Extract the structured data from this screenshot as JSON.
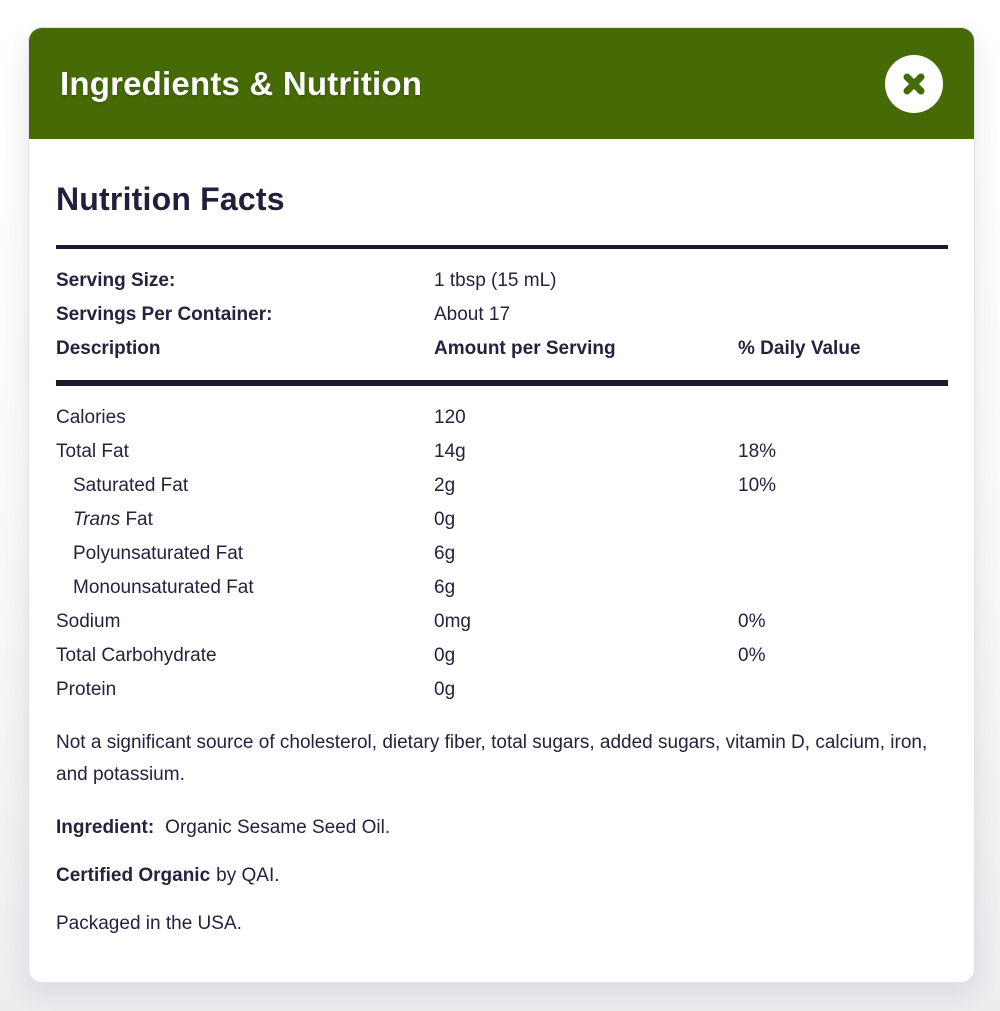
{
  "modal": {
    "title": "Ingredients & Nutrition"
  },
  "colors": {
    "header_green": "#456a06",
    "text_navy": "#232340",
    "rule": "#1a1a30"
  },
  "panel": {
    "title": "Nutrition Facts",
    "serving_rows": [
      {
        "label": "Serving Size:",
        "label_italic": "",
        "amount": "1 tbsp (15 mL)",
        "dv": "",
        "indent": false,
        "label_bold": true,
        "amount_bold": false,
        "dv_bold": false
      },
      {
        "label": "Servings Per Container:",
        "label_italic": "",
        "amount": "About 17",
        "dv": "",
        "indent": false,
        "label_bold": true,
        "amount_bold": false,
        "dv_bold": false
      },
      {
        "label": "Description",
        "label_italic": "",
        "amount": "Amount per Serving",
        "dv": "% Daily Value",
        "indent": false,
        "label_bold": true,
        "amount_bold": true,
        "dv_bold": true
      }
    ],
    "nutrient_rows": [
      {
        "label": "Calories",
        "label_italic": "",
        "amount": "120",
        "dv": "",
        "indent": false,
        "label_bold": false,
        "amount_bold": false,
        "dv_bold": false
      },
      {
        "label": "Total Fat",
        "label_italic": "",
        "amount": "14g",
        "dv": "18%",
        "indent": false,
        "label_bold": false,
        "amount_bold": false,
        "dv_bold": false
      },
      {
        "label": "Saturated Fat",
        "label_italic": "",
        "amount": "2g",
        "dv": "10%",
        "indent": true,
        "label_bold": false,
        "amount_bold": false,
        "dv_bold": false
      },
      {
        "label": " Fat",
        "label_italic": "Trans",
        "amount": "0g",
        "dv": "",
        "indent": true,
        "label_bold": false,
        "amount_bold": false,
        "dv_bold": false
      },
      {
        "label": "Polyunsaturated Fat",
        "label_italic": "",
        "amount": "6g",
        "dv": "",
        "indent": true,
        "label_bold": false,
        "amount_bold": false,
        "dv_bold": false
      },
      {
        "label": "Monounsaturated Fat",
        "label_italic": "",
        "amount": "6g",
        "dv": "",
        "indent": true,
        "label_bold": false,
        "amount_bold": false,
        "dv_bold": false
      },
      {
        "label": "Sodium",
        "label_italic": "",
        "amount": "0mg",
        "dv": "0%",
        "indent": false,
        "label_bold": false,
        "amount_bold": false,
        "dv_bold": false
      },
      {
        "label": "Total Carbohydrate",
        "label_italic": "",
        "amount": "0g",
        "dv": "0%",
        "indent": false,
        "label_bold": false,
        "amount_bold": false,
        "dv_bold": false
      },
      {
        "label": "Protein",
        "label_italic": "",
        "amount": "0g",
        "dv": "",
        "indent": false,
        "label_bold": false,
        "amount_bold": false,
        "dv_bold": false
      }
    ],
    "footnote": "Not a significant source of cholesterol, dietary fiber, total sugars, added sugars, vitamin D, calcium, iron, and potassium.",
    "ingredient_label": "Ingredient:",
    "ingredient_value": "Organic Sesame Seed Oil.",
    "certified_label": "Certified Organic",
    "certified_value": "by QAI.",
    "packaged": "Packaged in the USA."
  }
}
